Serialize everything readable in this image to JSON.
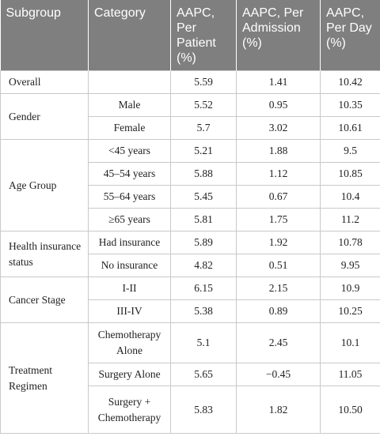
{
  "headers": [
    "Subgroup",
    "Category",
    "AAPC, Per Patient (%)",
    "AAPC, Per Admission (%)",
    "AAPC, Per Day (%)"
  ],
  "groups": [
    {
      "subgroup": "Overall",
      "rows": [
        {
          "category": "",
          "per_patient": "5.59",
          "per_admission": "1.41",
          "per_day": "10.42"
        }
      ]
    },
    {
      "subgroup": "Gender",
      "rows": [
        {
          "category": "Male",
          "per_patient": "5.52",
          "per_admission": "0.95",
          "per_day": "10.35"
        },
        {
          "category": "Female",
          "per_patient": "5.7",
          "per_admission": "3.02",
          "per_day": "10.61"
        }
      ]
    },
    {
      "subgroup": "Age Group",
      "rows": [
        {
          "category": "<45 years",
          "per_patient": "5.21",
          "per_admission": "1.88",
          "per_day": "9.5"
        },
        {
          "category": "45–54 years",
          "per_patient": "5.88",
          "per_admission": "1.12",
          "per_day": "10.85"
        },
        {
          "category": "55–64 years",
          "per_patient": "5.45",
          "per_admission": "0.67",
          "per_day": "10.4"
        },
        {
          "category": "≥65 years",
          "per_patient": "5.81",
          "per_admission": "1.75",
          "per_day": "11.2"
        }
      ]
    },
    {
      "subgroup": "Health insurance status",
      "rows": [
        {
          "category": "Had insurance",
          "per_patient": "5.89",
          "per_admission": "1.92",
          "per_day": "10.78"
        },
        {
          "category": "No insurance",
          "per_patient": "4.82",
          "per_admission": "0.51",
          "per_day": "9.95"
        }
      ]
    },
    {
      "subgroup": "Cancer Stage",
      "rows": [
        {
          "category": "I-II",
          "per_patient": "6.15",
          "per_admission": "2.15",
          "per_day": "10.9"
        },
        {
          "category": "III-IV",
          "per_patient": "5.38",
          "per_admission": "0.89",
          "per_day": "10.25"
        }
      ]
    },
    {
      "subgroup": "Treatment Regimen",
      "rows": [
        {
          "category": "Chemotherapy Alone",
          "per_patient": "5.1",
          "per_admission": "2.45",
          "per_day": "10.1"
        },
        {
          "category": "Surgery Alone",
          "per_patient": "5.65",
          "per_admission": "−0.45",
          "per_day": "11.05"
        },
        {
          "category": "Surgery + Chemotherapy",
          "per_patient": "5.83",
          "per_admission": "1.82",
          "per_day": "10.50"
        }
      ]
    }
  ]
}
